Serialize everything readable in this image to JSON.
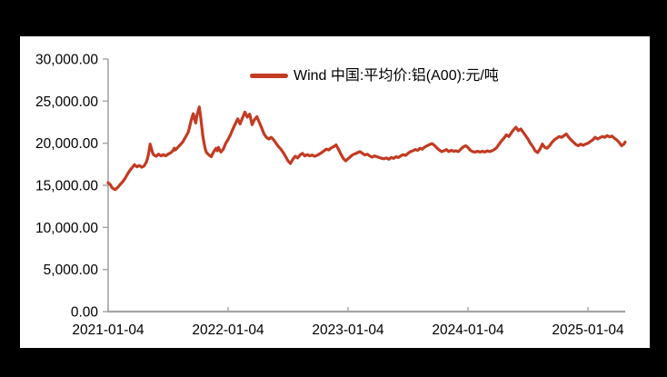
{
  "window": {
    "background_color": "#000000",
    "panel_color": "#ffffff"
  },
  "chart_data": {
    "type": "line",
    "title": "",
    "xlabel": "",
    "ylabel": "",
    "ylim": [
      0,
      30000
    ],
    "grid": "off",
    "axis_color": "#a3a3a3",
    "text_color": "#000000",
    "legend_position": "top-center",
    "y_ticks": {
      "values": [
        0,
        5000,
        10000,
        15000,
        20000,
        25000,
        30000
      ],
      "labels": [
        "0.00",
        "5,000.00",
        "10,000.00",
        "15,000.00",
        "20,000.00",
        "25,000.00",
        "30,000.00"
      ]
    },
    "x_ticks": {
      "years_from_start": [
        0,
        1,
        2,
        3,
        4
      ],
      "labels": [
        "2021-01-04",
        "2022-01-04",
        "2023-01-04",
        "2024-01-04",
        "2025-01-04"
      ]
    },
    "series": [
      {
        "name": "Wind 中国:平均价:铝(A00):元/吨",
        "color": "#c23b22",
        "x_unit": "years_since_2021-01-04",
        "points": [
          [
            0.0,
            15300
          ],
          [
            0.02,
            15050
          ],
          [
            0.03,
            14750
          ],
          [
            0.05,
            14550
          ],
          [
            0.06,
            14500
          ],
          [
            0.08,
            14750
          ],
          [
            0.1,
            15100
          ],
          [
            0.12,
            15400
          ],
          [
            0.14,
            15800
          ],
          [
            0.16,
            16300
          ],
          [
            0.18,
            16750
          ],
          [
            0.2,
            17100
          ],
          [
            0.22,
            17450
          ],
          [
            0.24,
            17200
          ],
          [
            0.26,
            17350
          ],
          [
            0.28,
            17150
          ],
          [
            0.3,
            17300
          ],
          [
            0.32,
            17800
          ],
          [
            0.33,
            18300
          ],
          [
            0.34,
            19000
          ],
          [
            0.35,
            19900
          ],
          [
            0.36,
            19400
          ],
          [
            0.37,
            18900
          ],
          [
            0.38,
            18600
          ],
          [
            0.4,
            18450
          ],
          [
            0.42,
            18700
          ],
          [
            0.44,
            18500
          ],
          [
            0.46,
            18650
          ],
          [
            0.48,
            18500
          ],
          [
            0.5,
            18700
          ],
          [
            0.52,
            18850
          ],
          [
            0.54,
            19100
          ],
          [
            0.55,
            19400
          ],
          [
            0.56,
            19200
          ],
          [
            0.58,
            19500
          ],
          [
            0.6,
            19800
          ],
          [
            0.62,
            20100
          ],
          [
            0.64,
            20600
          ],
          [
            0.66,
            21100
          ],
          [
            0.67,
            21400
          ],
          [
            0.68,
            22000
          ],
          [
            0.69,
            22600
          ],
          [
            0.7,
            23100
          ],
          [
            0.71,
            23500
          ],
          [
            0.72,
            22900
          ],
          [
            0.73,
            22400
          ],
          [
            0.74,
            23300
          ],
          [
            0.75,
            23800
          ],
          [
            0.76,
            24300
          ],
          [
            0.77,
            23300
          ],
          [
            0.78,
            22000
          ],
          [
            0.79,
            20800
          ],
          [
            0.8,
            20000
          ],
          [
            0.81,
            19300
          ],
          [
            0.82,
            18900
          ],
          [
            0.84,
            18600
          ],
          [
            0.86,
            18400
          ],
          [
            0.87,
            18700
          ],
          [
            0.88,
            19000
          ],
          [
            0.9,
            19400
          ],
          [
            0.91,
            19100
          ],
          [
            0.92,
            19500
          ],
          [
            0.93,
            19200
          ],
          [
            0.94,
            18950
          ],
          [
            0.96,
            19300
          ],
          [
            0.98,
            20000
          ],
          [
            1.0,
            20450
          ],
          [
            1.02,
            21000
          ],
          [
            1.04,
            21700
          ],
          [
            1.06,
            22300
          ],
          [
            1.08,
            22900
          ],
          [
            1.1,
            22300
          ],
          [
            1.12,
            23000
          ],
          [
            1.14,
            23700
          ],
          [
            1.16,
            23100
          ],
          [
            1.18,
            23450
          ],
          [
            1.2,
            22200
          ],
          [
            1.22,
            22800
          ],
          [
            1.24,
            23150
          ],
          [
            1.26,
            22500
          ],
          [
            1.28,
            21800
          ],
          [
            1.3,
            21100
          ],
          [
            1.32,
            20700
          ],
          [
            1.34,
            20500
          ],
          [
            1.36,
            20700
          ],
          [
            1.38,
            20400
          ],
          [
            1.4,
            20000
          ],
          [
            1.42,
            19600
          ],
          [
            1.44,
            19300
          ],
          [
            1.46,
            18900
          ],
          [
            1.48,
            18400
          ],
          [
            1.5,
            17900
          ],
          [
            1.52,
            17600
          ],
          [
            1.54,
            18100
          ],
          [
            1.56,
            18450
          ],
          [
            1.58,
            18250
          ],
          [
            1.6,
            18600
          ],
          [
            1.62,
            18800
          ],
          [
            1.64,
            18500
          ],
          [
            1.66,
            18650
          ],
          [
            1.68,
            18500
          ],
          [
            1.7,
            18600
          ],
          [
            1.72,
            18450
          ],
          [
            1.74,
            18550
          ],
          [
            1.76,
            18700
          ],
          [
            1.78,
            18900
          ],
          [
            1.8,
            19100
          ],
          [
            1.82,
            19300
          ],
          [
            1.84,
            19200
          ],
          [
            1.86,
            19450
          ],
          [
            1.88,
            19600
          ],
          [
            1.9,
            19800
          ],
          [
            1.92,
            19300
          ],
          [
            1.94,
            18700
          ],
          [
            1.96,
            18200
          ],
          [
            1.98,
            17900
          ],
          [
            2.0,
            18150
          ],
          [
            2.02,
            18400
          ],
          [
            2.04,
            18650
          ],
          [
            2.06,
            18750
          ],
          [
            2.08,
            18900
          ],
          [
            2.1,
            19000
          ],
          [
            2.12,
            18800
          ],
          [
            2.14,
            18600
          ],
          [
            2.16,
            18700
          ],
          [
            2.18,
            18500
          ],
          [
            2.2,
            18350
          ],
          [
            2.22,
            18500
          ],
          [
            2.24,
            18400
          ],
          [
            2.26,
            18300
          ],
          [
            2.28,
            18200
          ],
          [
            2.3,
            18150
          ],
          [
            2.32,
            18250
          ],
          [
            2.34,
            18100
          ],
          [
            2.36,
            18300
          ],
          [
            2.38,
            18200
          ],
          [
            2.4,
            18400
          ],
          [
            2.42,
            18300
          ],
          [
            2.44,
            18500
          ],
          [
            2.46,
            18650
          ],
          [
            2.48,
            18550
          ],
          [
            2.5,
            18800
          ],
          [
            2.52,
            19000
          ],
          [
            2.54,
            19100
          ],
          [
            2.56,
            19250
          ],
          [
            2.58,
            19150
          ],
          [
            2.6,
            19400
          ],
          [
            2.62,
            19300
          ],
          [
            2.64,
            19550
          ],
          [
            2.66,
            19700
          ],
          [
            2.68,
            19850
          ],
          [
            2.7,
            19950
          ],
          [
            2.72,
            19750
          ],
          [
            2.74,
            19450
          ],
          [
            2.76,
            19200
          ],
          [
            2.78,
            19000
          ],
          [
            2.8,
            19100
          ],
          [
            2.82,
            19250
          ],
          [
            2.84,
            19000
          ],
          [
            2.86,
            19150
          ],
          [
            2.88,
            19050
          ],
          [
            2.9,
            19100
          ],
          [
            2.92,
            19000
          ],
          [
            2.94,
            19300
          ],
          [
            2.96,
            19550
          ],
          [
            2.98,
            19700
          ],
          [
            3.0,
            19500
          ],
          [
            3.02,
            19150
          ],
          [
            3.04,
            19000
          ],
          [
            3.06,
            18950
          ],
          [
            3.08,
            19050
          ],
          [
            3.1,
            18950
          ],
          [
            3.12,
            19050
          ],
          [
            3.14,
            18950
          ],
          [
            3.16,
            19100
          ],
          [
            3.18,
            19000
          ],
          [
            3.2,
            19100
          ],
          [
            3.22,
            19250
          ],
          [
            3.24,
            19500
          ],
          [
            3.26,
            19900
          ],
          [
            3.28,
            20300
          ],
          [
            3.3,
            20600
          ],
          [
            3.32,
            21000
          ],
          [
            3.34,
            20800
          ],
          [
            3.36,
            21200
          ],
          [
            3.38,
            21600
          ],
          [
            3.4,
            21900
          ],
          [
            3.42,
            21500
          ],
          [
            3.44,
            21700
          ],
          [
            3.46,
            21300
          ],
          [
            3.48,
            20900
          ],
          [
            3.5,
            20500
          ],
          [
            3.52,
            20000
          ],
          [
            3.54,
            19600
          ],
          [
            3.56,
            19100
          ],
          [
            3.58,
            18900
          ],
          [
            3.6,
            19300
          ],
          [
            3.62,
            19900
          ],
          [
            3.64,
            19500
          ],
          [
            3.66,
            19400
          ],
          [
            3.68,
            19700
          ],
          [
            3.7,
            20100
          ],
          [
            3.72,
            20400
          ],
          [
            3.74,
            20600
          ],
          [
            3.76,
            20800
          ],
          [
            3.78,
            20700
          ],
          [
            3.8,
            20900
          ],
          [
            3.82,
            21100
          ],
          [
            3.84,
            20700
          ],
          [
            3.86,
            20400
          ],
          [
            3.88,
            20100
          ],
          [
            3.9,
            19850
          ],
          [
            3.92,
            19700
          ],
          [
            3.94,
            19900
          ],
          [
            3.96,
            19750
          ],
          [
            3.98,
            19900
          ],
          [
            4.0,
            20000
          ],
          [
            4.02,
            20200
          ],
          [
            4.04,
            20400
          ],
          [
            4.06,
            20700
          ],
          [
            4.08,
            20500
          ],
          [
            4.1,
            20650
          ],
          [
            4.12,
            20800
          ],
          [
            4.14,
            20700
          ],
          [
            4.16,
            20900
          ],
          [
            4.18,
            20750
          ],
          [
            4.2,
            20850
          ],
          [
            4.22,
            20600
          ],
          [
            4.24,
            20400
          ],
          [
            4.26,
            20100
          ],
          [
            4.28,
            19700
          ],
          [
            4.3,
            19900
          ],
          [
            4.31,
            20150
          ]
        ]
      }
    ]
  }
}
